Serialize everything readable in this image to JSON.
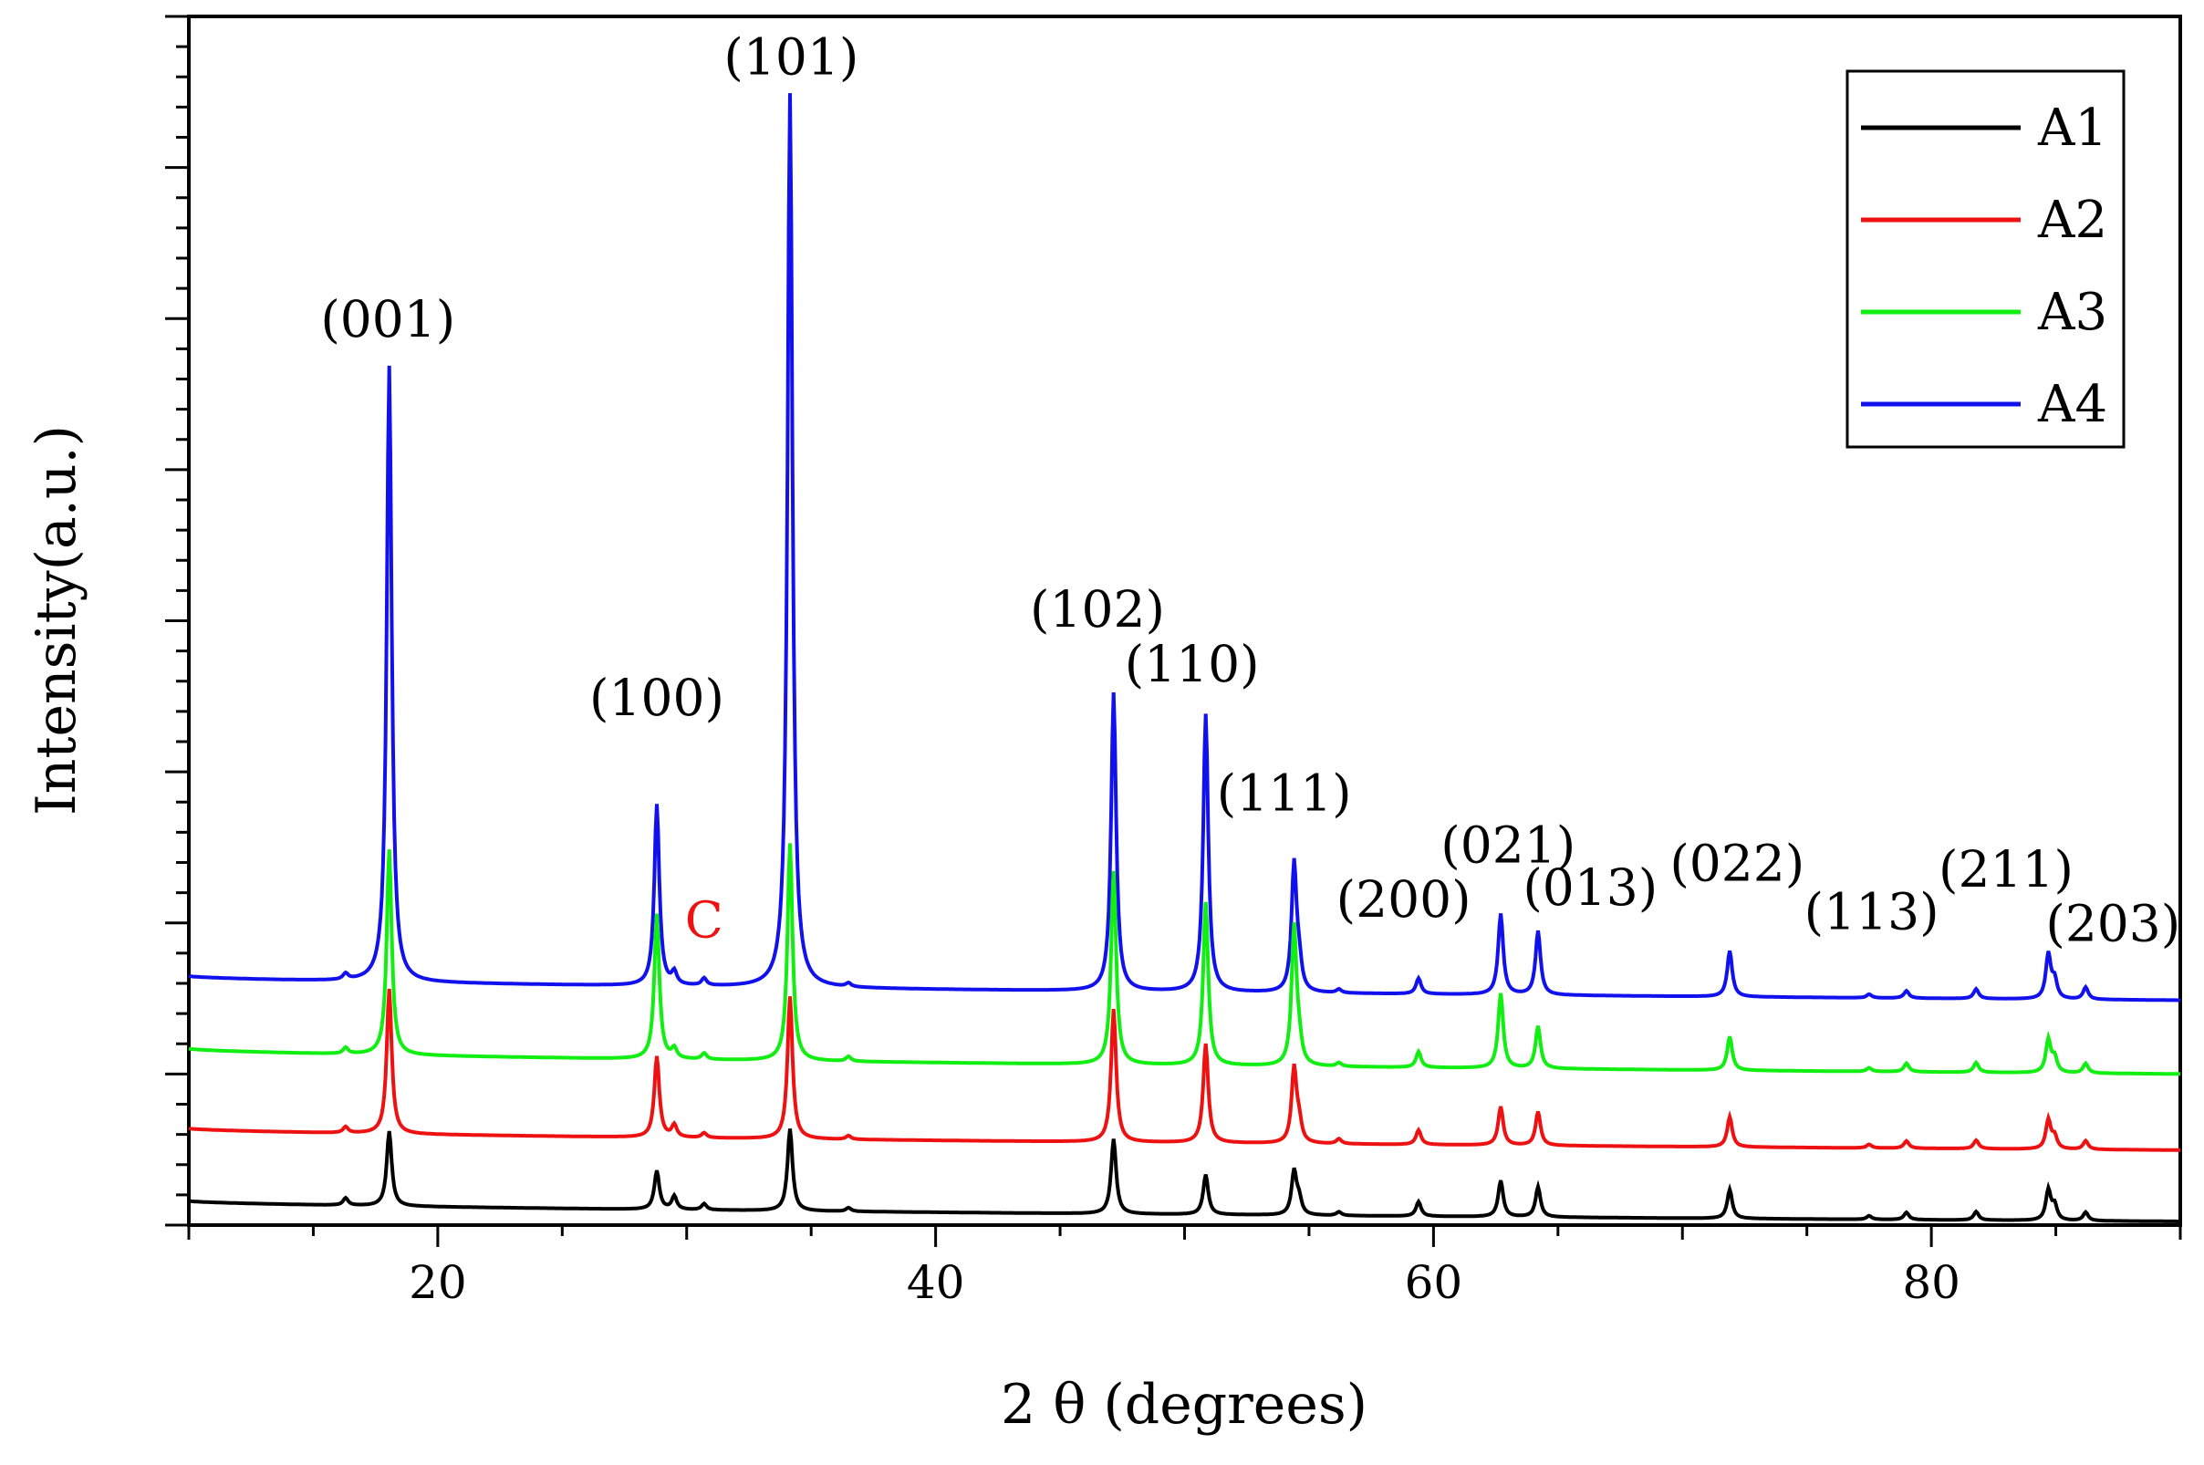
{
  "chart_data": {
    "type": "line",
    "title": "",
    "xlabel": "2 θ (degrees)",
    "ylabel": "Intensity(a.u.)",
    "xlim": [
      10,
      90
    ],
    "ylim": [
      0,
      100
    ],
    "x_ticks": [
      20,
      40,
      60,
      80
    ],
    "x_tick_labels": [
      "20",
      "40",
      "60",
      "80"
    ],
    "show_y_tick_labels": false,
    "legend_position": "top-right",
    "series": [
      {
        "name": "A1",
        "color": "#000000",
        "baseline_start": 2.0,
        "baseline_end": 0.3,
        "peaks": [
          [
            16.3,
            0.6
          ],
          [
            18.05,
            6.2
          ],
          [
            28.8,
            3.2
          ],
          [
            29.5,
            1.1
          ],
          [
            30.7,
            0.5
          ],
          [
            34.15,
            6.8
          ],
          [
            36.5,
            0.3
          ],
          [
            47.15,
            6.2
          ],
          [
            50.85,
            3.3
          ],
          [
            54.4,
            3.6
          ],
          [
            54.6,
            1.2
          ],
          [
            56.2,
            0.3
          ],
          [
            59.4,
            1.2
          ],
          [
            62.7,
            3.0
          ],
          [
            64.2,
            2.5
          ],
          [
            71.9,
            2.4
          ],
          [
            77.5,
            0.3
          ],
          [
            79.0,
            0.6
          ],
          [
            81.8,
            0.7
          ],
          [
            84.7,
            2.5
          ],
          [
            84.95,
            1.2
          ],
          [
            86.2,
            0.7
          ]
        ]
      },
      {
        "name": "A2",
        "color": "#ee1111",
        "baseline_start": 8.0,
        "baseline_end": 6.2,
        "peaks": [
          [
            16.3,
            0.5
          ],
          [
            18.05,
            12.0
          ],
          [
            28.8,
            6.7
          ],
          [
            29.5,
            1.0
          ],
          [
            30.7,
            0.4
          ],
          [
            34.15,
            11.8
          ],
          [
            36.5,
            0.3
          ],
          [
            47.15,
            11.0
          ],
          [
            50.85,
            8.2
          ],
          [
            54.4,
            6.2
          ],
          [
            54.6,
            1.5
          ],
          [
            56.2,
            0.4
          ],
          [
            59.4,
            1.2
          ],
          [
            62.7,
            3.2
          ],
          [
            64.2,
            2.8
          ],
          [
            71.9,
            2.5
          ],
          [
            77.5,
            0.3
          ],
          [
            79.0,
            0.6
          ],
          [
            81.8,
            0.7
          ],
          [
            84.7,
            2.4
          ],
          [
            84.95,
            1.0
          ],
          [
            86.2,
            0.7
          ]
        ]
      },
      {
        "name": "A3",
        "color": "#11ee11",
        "baseline_start": 14.6,
        "baseline_end": 12.5,
        "peaks": [
          [
            16.3,
            0.5
          ],
          [
            18.05,
            17.0
          ],
          [
            28.8,
            12.0
          ],
          [
            29.5,
            0.8
          ],
          [
            30.7,
            0.5
          ],
          [
            34.15,
            18.0
          ],
          [
            36.5,
            0.4
          ],
          [
            47.15,
            16.0
          ],
          [
            50.85,
            13.5
          ],
          [
            54.4,
            11.5
          ],
          [
            54.6,
            1.5
          ],
          [
            56.2,
            0.3
          ],
          [
            59.4,
            1.3
          ],
          [
            62.7,
            6.2
          ],
          [
            64.2,
            3.5
          ],
          [
            71.9,
            2.8
          ],
          [
            77.5,
            0.3
          ],
          [
            79.0,
            0.7
          ],
          [
            81.8,
            0.8
          ],
          [
            84.7,
            2.7
          ],
          [
            84.95,
            1.2
          ],
          [
            86.2,
            0.8
          ]
        ]
      },
      {
        "name": "A4",
        "color": "#1111ee",
        "baseline_start": 20.6,
        "baseline_end": 18.6,
        "peaks": [
          [
            16.3,
            0.5
          ],
          [
            18.05,
            51.0
          ],
          [
            28.8,
            15.0
          ],
          [
            29.5,
            1.0
          ],
          [
            30.7,
            0.6
          ],
          [
            34.15,
            74.0
          ],
          [
            36.5,
            0.3
          ],
          [
            47.15,
            24.7
          ],
          [
            50.85,
            23.0
          ],
          [
            54.4,
            10.6
          ],
          [
            54.6,
            2.0
          ],
          [
            56.2,
            0.3
          ],
          [
            59.4,
            1.3
          ],
          [
            62.7,
            6.7
          ],
          [
            64.2,
            5.3
          ],
          [
            71.9,
            3.8
          ],
          [
            77.5,
            0.3
          ],
          [
            79.0,
            0.6
          ],
          [
            81.8,
            0.8
          ],
          [
            84.7,
            3.7
          ],
          [
            84.95,
            1.5
          ],
          [
            86.2,
            1.0
          ]
        ]
      }
    ],
    "annotations": [
      {
        "text": "(001)",
        "x": 18.0,
        "y": 73.5
      },
      {
        "text": "(100)",
        "x": 28.8,
        "y": 42.2
      },
      {
        "text": "(101)",
        "x": 34.2,
        "y": 95.2
      },
      {
        "text": "(102)",
        "x": 46.5,
        "y": 49.5
      },
      {
        "text": "(110)",
        "x": 50.3,
        "y": 45.0
      },
      {
        "text": "(111)",
        "x": 54.0,
        "y": 34.3
      },
      {
        "text": "(200)",
        "x": 58.8,
        "y": 25.5
      },
      {
        "text": "(021)",
        "x": 63.0,
        "y": 30.0
      },
      {
        "text": "(013)",
        "x": 66.3,
        "y": 26.5
      },
      {
        "text": "(022)",
        "x": 72.2,
        "y": 28.5
      },
      {
        "text": "(113)",
        "x": 77.6,
        "y": 24.5
      },
      {
        "text": "(211)",
        "x": 83.0,
        "y": 28.0
      },
      {
        "text": "(203)",
        "x": 87.3,
        "y": 23.5
      },
      {
        "text": "C",
        "x": 30.7,
        "y": 23.8,
        "color": "#ee1111"
      }
    ]
  }
}
